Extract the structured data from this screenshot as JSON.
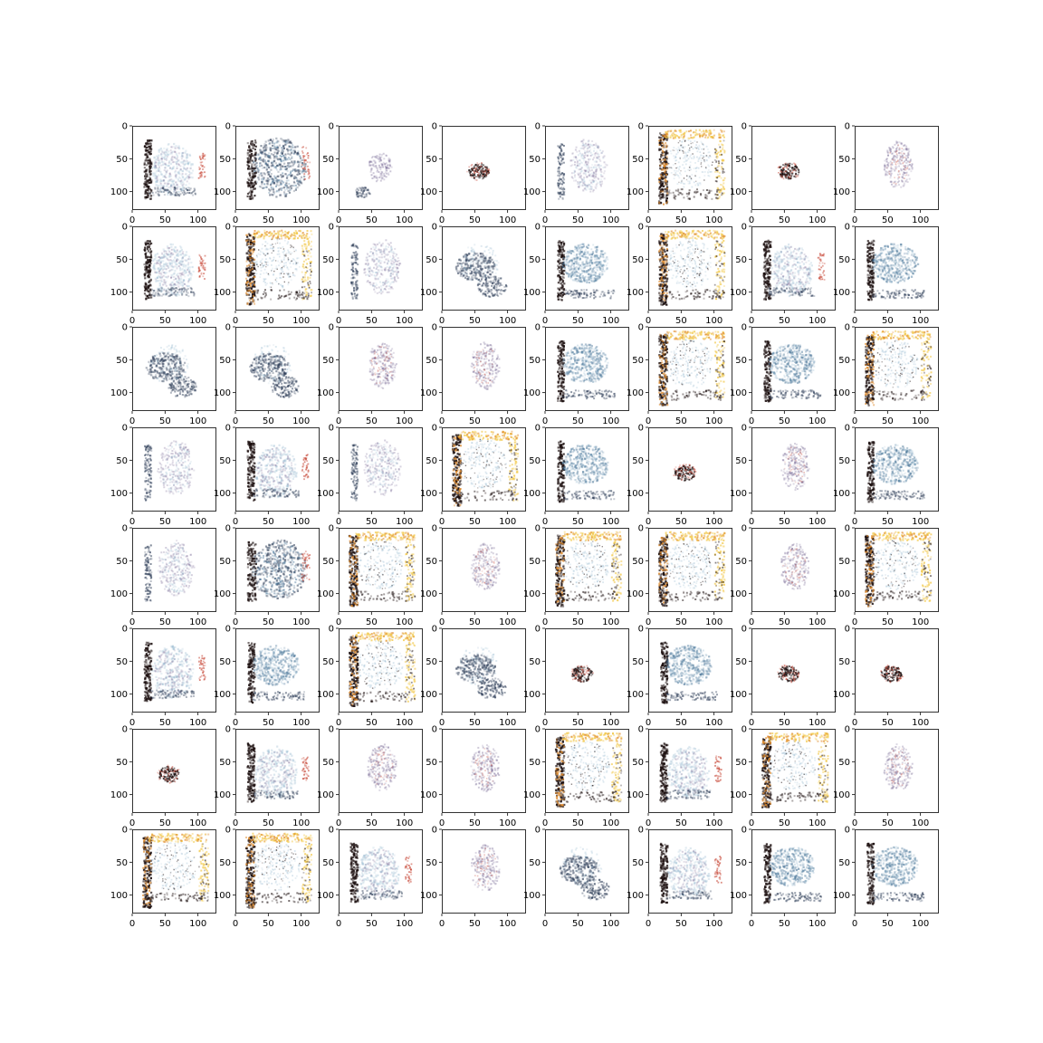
{
  "figure": {
    "grid": {
      "rows": 8,
      "cols": 8
    }
  },
  "axes_style": {
    "x_ticks": [
      "0",
      "50",
      "100"
    ],
    "y_ticks": [
      "0",
      "50",
      "100"
    ],
    "image_extent": 128
  },
  "palette": {
    "dark": "#1a0d0d",
    "blue": "#3a6a90",
    "light_blue": "#8fb4cc",
    "navy": "#2a3a55",
    "purple": "#6a5a8a",
    "red": "#c84a3a",
    "orange": "#e08a2a",
    "yellow": "#f2c94c"
  },
  "panels": [
    {
      "pattern": "l-bracket",
      "seed": 1
    },
    {
      "pattern": "dense-blob",
      "seed": 2
    },
    {
      "pattern": "small-faint",
      "seed": 3
    },
    {
      "pattern": "tiny-dark",
      "seed": 4
    },
    {
      "pattern": "column-faint",
      "seed": 5
    },
    {
      "pattern": "full-orange",
      "seed": 6
    },
    {
      "pattern": "tiny-dark",
      "seed": 7
    },
    {
      "pattern": "medium-faint",
      "seed": 8
    },
    {
      "pattern": "l-bracket",
      "seed": 9
    },
    {
      "pattern": "full-orange",
      "seed": 10
    },
    {
      "pattern": "column-faint",
      "seed": 11
    },
    {
      "pattern": "diagonal-blob",
      "seed": 12
    },
    {
      "pattern": "l-blue",
      "seed": 13
    },
    {
      "pattern": "full-orange",
      "seed": 14
    },
    {
      "pattern": "l-bracket",
      "seed": 15
    },
    {
      "pattern": "l-blue",
      "seed": 16
    },
    {
      "pattern": "diagonal-blob",
      "seed": 17
    },
    {
      "pattern": "diagonal-blob",
      "seed": 18
    },
    {
      "pattern": "medium-faint",
      "seed": 19
    },
    {
      "pattern": "medium-faint",
      "seed": 20
    },
    {
      "pattern": "l-blue",
      "seed": 21
    },
    {
      "pattern": "full-orange",
      "seed": 22
    },
    {
      "pattern": "l-blue",
      "seed": 23
    },
    {
      "pattern": "full-orange",
      "seed": 24
    },
    {
      "pattern": "column-faint",
      "seed": 25
    },
    {
      "pattern": "l-bracket",
      "seed": 26
    },
    {
      "pattern": "column-faint",
      "seed": 27
    },
    {
      "pattern": "full-orange",
      "seed": 28
    },
    {
      "pattern": "l-blue",
      "seed": 29
    },
    {
      "pattern": "tiny-dark",
      "seed": 30
    },
    {
      "pattern": "medium-faint",
      "seed": 31
    },
    {
      "pattern": "l-blue",
      "seed": 32
    },
    {
      "pattern": "column-faint",
      "seed": 33
    },
    {
      "pattern": "dense-blob",
      "seed": 34
    },
    {
      "pattern": "full-orange",
      "seed": 35
    },
    {
      "pattern": "medium-faint",
      "seed": 36
    },
    {
      "pattern": "full-orange",
      "seed": 37
    },
    {
      "pattern": "full-orange",
      "seed": 38
    },
    {
      "pattern": "medium-faint",
      "seed": 39
    },
    {
      "pattern": "full-orange",
      "seed": 40
    },
    {
      "pattern": "l-bracket",
      "seed": 41
    },
    {
      "pattern": "l-blue",
      "seed": 42
    },
    {
      "pattern": "full-orange",
      "seed": 43
    },
    {
      "pattern": "diagonal-blob",
      "seed": 44
    },
    {
      "pattern": "tiny-dark",
      "seed": 45
    },
    {
      "pattern": "l-blue",
      "seed": 46
    },
    {
      "pattern": "tiny-dark",
      "seed": 47
    },
    {
      "pattern": "tiny-dark",
      "seed": 48
    },
    {
      "pattern": "tiny-dark",
      "seed": 49
    },
    {
      "pattern": "l-bracket",
      "seed": 50
    },
    {
      "pattern": "medium-faint",
      "seed": 51
    },
    {
      "pattern": "medium-faint",
      "seed": 52
    },
    {
      "pattern": "full-orange",
      "seed": 53
    },
    {
      "pattern": "l-bracket",
      "seed": 54
    },
    {
      "pattern": "full-orange",
      "seed": 55
    },
    {
      "pattern": "medium-faint",
      "seed": 56
    },
    {
      "pattern": "full-orange",
      "seed": 57
    },
    {
      "pattern": "full-orange",
      "seed": 58
    },
    {
      "pattern": "l-bracket",
      "seed": 59
    },
    {
      "pattern": "medium-faint",
      "seed": 60
    },
    {
      "pattern": "diagonal-blob",
      "seed": 61
    },
    {
      "pattern": "l-bracket",
      "seed": 62
    },
    {
      "pattern": "l-blue",
      "seed": 63
    },
    {
      "pattern": "l-blue",
      "seed": 64
    }
  ]
}
